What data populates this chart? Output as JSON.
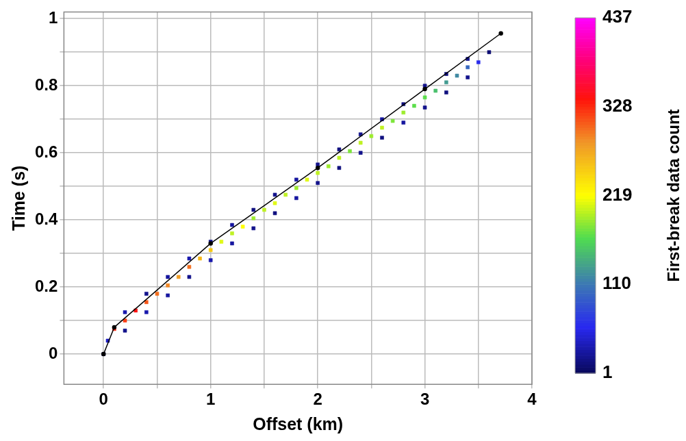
{
  "chart_data": {
    "type": "scatter",
    "xlabel": "Offset (km)",
    "ylabel": "Time (s)",
    "clabel": "First-break data count",
    "xlim": [
      -0.37,
      4.0
    ],
    "ylim": [
      -0.09,
      1.02
    ],
    "xticks": [
      0,
      {
        "value": 0.5,
        "label": null
      },
      1,
      {
        "value": 1.5,
        "label": null
      },
      2,
      {
        "value": 2.5,
        "label": null
      },
      3,
      {
        "value": 3.5,
        "label": null
      },
      4
    ],
    "yticks": [
      0,
      {
        "value": 0.1,
        "label": null
      },
      0.2,
      {
        "value": 0.3,
        "label": null
      },
      0.4,
      {
        "value": 0.5,
        "label": null
      },
      0.6,
      {
        "value": 0.7,
        "label": null
      },
      0.8,
      {
        "value": 0.9,
        "label": null
      },
      1.0
    ],
    "grid": true,
    "clim": [
      1,
      437
    ],
    "cticks": [
      1,
      110,
      219,
      328,
      437
    ],
    "series": [
      {
        "type": "scatter",
        "marker": "square",
        "x": [
          0.1,
          0.2,
          0.3,
          0.4,
          0.5,
          0.6,
          0.7,
          0.8,
          0.9,
          1.0,
          1.1,
          1.2,
          1.3,
          1.4,
          1.5,
          1.6,
          1.7,
          1.8,
          1.9,
          2.0,
          2.1,
          2.2,
          2.3,
          2.4,
          2.5,
          2.6,
          2.7,
          2.8,
          2.9,
          3.0,
          3.1,
          3.2,
          3.3,
          3.4,
          3.5,
          0.2,
          0.4,
          0.6,
          0.8,
          1.0,
          1.2,
          1.4,
          1.6,
          1.8,
          2.0,
          2.2,
          2.4,
          2.6,
          2.8,
          3.0,
          3.2,
          3.4,
          0.2,
          0.4,
          0.6,
          0.8,
          1.0,
          1.2,
          1.4,
          1.6,
          1.8,
          2.0,
          2.2,
          2.4,
          2.6,
          2.8,
          3.0,
          3.2,
          3.4,
          3.6,
          0,
          0.04
        ],
        "values": [
          0.075,
          0.1,
          0.13,
          0.155,
          0.18,
          0.205,
          0.23,
          0.26,
          0.285,
          0.31,
          0.335,
          0.36,
          0.38,
          0.405,
          0.43,
          0.45,
          0.475,
          0.495,
          0.52,
          0.54,
          0.56,
          0.585,
          0.605,
          0.63,
          0.65,
          0.675,
          0.695,
          0.72,
          0.74,
          0.765,
          0.785,
          0.81,
          0.83,
          0.855,
          0.87,
          0.125,
          0.18,
          0.23,
          0.285,
          0.335,
          0.385,
          0.43,
          0.475,
          0.52,
          0.565,
          0.61,
          0.655,
          0.7,
          0.745,
          0.8,
          0.835,
          0.88,
          0.07,
          0.125,
          0.175,
          0.23,
          0.28,
          0.33,
          0.375,
          0.42,
          0.465,
          0.51,
          0.555,
          0.6,
          0.645,
          0.69,
          0.735,
          0.78,
          0.825,
          0.9,
          0,
          0.04
        ],
        "colors": [
          "#fd240e",
          "#fa3d14",
          "#ff1312",
          "#f75619",
          "#f56f1f",
          "#f28825",
          "#f19e25",
          "#f56f1f",
          "#f6b419",
          "#f8c713",
          "#e0f918",
          "#bff125",
          "#fffe01",
          "#9dec2d",
          "#bff125",
          "#e0f918",
          "#bff125",
          "#9dec2d",
          "#e0f918",
          "#bff125",
          "#9dec2d",
          "#bff125",
          "#7de53b",
          "#bff125",
          "#9dec2d",
          "#bff125",
          "#7de53b",
          "#9dec2d",
          "#5cde4b",
          "#5cde4b",
          "#4ac06d",
          "#439c91",
          "#408aa2",
          "#3868c0",
          "#292bed",
          "#1818ae",
          "#13138c",
          "#1616a0",
          "#1818ae",
          "#13138c",
          "#1616a0",
          "#10107f",
          "#13138c",
          "#1616a0",
          "#13138c",
          "#10107f",
          "#13138c",
          "#1616a0",
          "#10107f",
          "#13138c",
          "#10107f",
          "#13138c",
          "#13138c",
          "#1818ae",
          "#1616a0",
          "#13138c",
          "#1818ae",
          "#1616a0",
          "#13138c",
          "#10107f",
          "#1616a0",
          "#13138c",
          "#10107f",
          "#13138c",
          "#10107f",
          "#1616a0",
          "#13138c",
          "#10107f",
          "#13138c",
          "#0d0d74",
          "#13138c",
          "#1e1ec4"
        ],
        "cvalues": [
          330,
          320,
          340,
          310,
          300,
          290,
          280,
          300,
          260,
          250,
          210,
          200,
          220,
          190,
          200,
          210,
          200,
          190,
          210,
          200,
          190,
          200,
          180,
          200,
          190,
          200,
          180,
          190,
          170,
          170,
          150,
          130,
          120,
          100,
          60,
          30,
          20,
          25,
          30,
          20,
          25,
          15,
          20,
          25,
          20,
          15,
          20,
          25,
          15,
          20,
          15,
          20,
          20,
          30,
          25,
          20,
          30,
          25,
          20,
          15,
          25,
          20,
          15,
          20,
          15,
          25,
          20,
          15,
          20,
          10,
          20,
          40
        ]
      },
      {
        "type": "line",
        "marker": "circle",
        "color": "#000000",
        "x": [
          0,
          0.1,
          1,
          2,
          3,
          3.71
        ],
        "values": [
          0,
          0.08,
          0.33,
          0.555,
          0.79,
          0.956
        ]
      }
    ]
  }
}
